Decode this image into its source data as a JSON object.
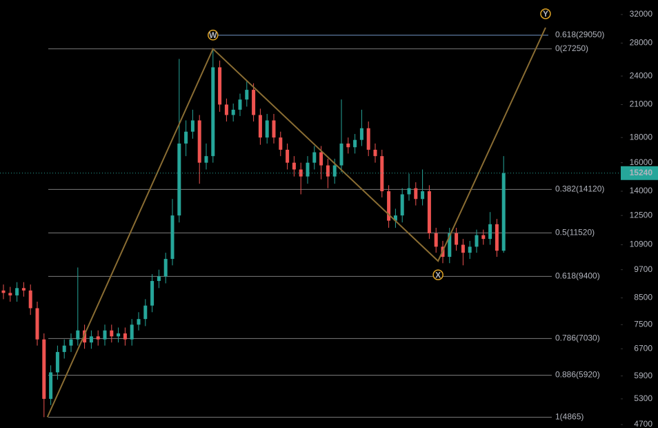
{
  "chart_data": {
    "type": "candlestick",
    "log_scale": true,
    "ylim": [
      4625,
      34250
    ],
    "yticks": [
      32000,
      28000,
      24000,
      21000,
      18000,
      16000,
      14000,
      12500,
      10900,
      9700,
      8500,
      7500,
      6700,
      5900,
      5300,
      4700
    ],
    "up_color": "#26a69a",
    "down_color": "#ef5350",
    "open": [
      8800,
      8700,
      8600,
      8900,
      8800,
      8100,
      7000,
      5300,
      6000,
      6600,
      6800,
      7000,
      7300,
      6900,
      7100,
      7000,
      7300,
      7100,
      7200,
      7000,
      7500,
      7700,
      8200,
      9200,
      9400,
      10200,
      12500,
      17500,
      18500,
      19500,
      16000,
      16500,
      25000,
      21000,
      20000,
      20500,
      21500,
      22500,
      20000,
      18000,
      19500,
      18000,
      17000,
      16000,
      15500,
      15000,
      16000,
      16800,
      15800,
      15000,
      15800,
      17500,
      17200,
      17800,
      18800,
      17000,
      16500,
      14000,
      12200,
      12500,
      13800,
      14200,
      13500,
      14000,
      11500,
      10800,
      10300,
      11500,
      10900,
      10500,
      10800,
      11400,
      11200,
      12000,
      10600
    ],
    "high": [
      9050,
      8950,
      9150,
      9150,
      9050,
      8350,
      7200,
      6200,
      6800,
      7000,
      7200,
      9800,
      7500,
      7300,
      7300,
      7500,
      7500,
      7400,
      7400,
      7700,
      7950,
      8450,
      9500,
      9700,
      10500,
      13500,
      26000,
      19500,
      20500,
      20000,
      17500,
      27250,
      25800,
      21600,
      21100,
      22100,
      23500,
      23200,
      20600,
      20100,
      20100,
      18500,
      17500,
      16500,
      16000,
      16500,
      17300,
      17300,
      16300,
      16300,
      21500,
      18000,
      18300,
      20500,
      19400,
      17500,
      17000,
      14400,
      12900,
      14200,
      15200,
      14600,
      15500,
      14400,
      11800,
      11100,
      11800,
      11800,
      11200,
      11100,
      11700,
      11700,
      12700,
      12300,
      16500
    ],
    "low": [
      8450,
      8350,
      8350,
      8550,
      7850,
      6800,
      4865,
      5150,
      5800,
      6400,
      6600,
      6800,
      6700,
      6700,
      6800,
      6800,
      6900,
      6900,
      6800,
      6800,
      7300,
      7450,
      7950,
      8900,
      9100,
      9900,
      12100,
      16500,
      17900,
      14500,
      15500,
      16000,
      20300,
      19400,
      19400,
      19900,
      20800,
      19400,
      17400,
      17500,
      17500,
      16500,
      15500,
      15000,
      13800,
      14500,
      15500,
      14800,
      14200,
      14500,
      15300,
      16700,
      16700,
      17300,
      16500,
      16000,
      13600,
      11800,
      11800,
      12100,
      13400,
      13100,
      13100,
      11200,
      10500,
      10000,
      10000,
      10600,
      9900,
      10200,
      10500,
      10900,
      10900,
      10300,
      10500
    ],
    "close": [
      8700,
      8600,
      8900,
      8800,
      8100,
      7000,
      5300,
      6000,
      6600,
      6800,
      7000,
      7300,
      6900,
      7100,
      7000,
      7300,
      7100,
      7200,
      7000,
      7500,
      7700,
      8200,
      9200,
      9400,
      10200,
      12500,
      17500,
      18500,
      19500,
      16000,
      16500,
      25000,
      21000,
      20000,
      20500,
      21500,
      22500,
      20000,
      18000,
      19500,
      18000,
      17000,
      16000,
      15500,
      15000,
      16000,
      16800,
      15800,
      15000,
      15800,
      17500,
      17200,
      17800,
      18800,
      17000,
      16500,
      14000,
      12200,
      12500,
      13800,
      14200,
      13500,
      14000,
      11500,
      10800,
      10300,
      11500,
      10900,
      10500,
      10800,
      11400,
      11200,
      12000,
      10600,
      15240
    ],
    "fib_levels": [
      {
        "value": 29050,
        "label": "0.618(29050)",
        "color": "#90bff9"
      },
      {
        "value": 27250,
        "label": "0(27250)",
        "color": "#9a9a9a"
      },
      {
        "value": 14120,
        "label": "0.382(14120)",
        "color": "#9a9a9a"
      },
      {
        "value": 11520,
        "label": "0.5(11520)",
        "color": "#9a9a9a"
      },
      {
        "value": 9400,
        "label": "0.618(9400)",
        "color": "#9a9a9a"
      },
      {
        "value": 7030,
        "label": "0.786(7030)",
        "color": "#9a9a9a"
      },
      {
        "value": 5920,
        "label": "0.886(5920)",
        "color": "#9a9a9a"
      },
      {
        "value": 4865,
        "label": "1(4865)",
        "color": "#9a9a9a"
      }
    ],
    "pattern_color": "#8a6d33",
    "pattern": [
      {
        "label": null,
        "index": 6.5,
        "value": 4865
      },
      {
        "label": "W",
        "index": 31,
        "value": 27250
      },
      {
        "label": "X",
        "index": 64.3,
        "value": 10100
      },
      {
        "label": "Y",
        "index": 80.2,
        "value": 30100
      }
    ]
  }
}
